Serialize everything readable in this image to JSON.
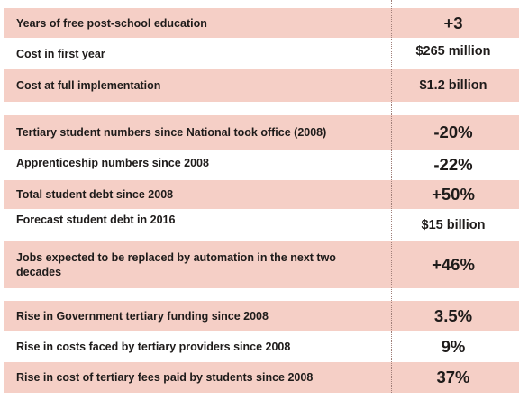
{
  "groups": [
    {
      "rows": [
        {
          "label": "Years of free post-school education",
          "value": "+3"
        },
        {
          "label": "Cost in first year",
          "value": "$265 million"
        },
        {
          "label": "Cost at full implementation",
          "value": "$1.2 billion"
        }
      ]
    },
    {
      "rows": [
        {
          "label": "Tertiary student numbers since National took office (2008)",
          "value": "-20%"
        },
        {
          "label": "Apprenticeship numbers since 2008",
          "value": "-22%"
        },
        {
          "label": "Total student debt since 2008",
          "value": "+50%"
        },
        {
          "label": "Forecast student debt in 2016",
          "value": "$15 billion"
        },
        {
          "label": "Jobs expected to be replaced by automation in the next two decades",
          "value": "+46%"
        }
      ]
    },
    {
      "rows": [
        {
          "label": "Rise in Government tertiary funding since 2008",
          "value": "3.5%"
        },
        {
          "label": "Rise in costs faced by tertiary providers since 2008",
          "value": "9%"
        },
        {
          "label": "Rise in cost of tertiary fees paid by students since 2008",
          "value": "37%"
        }
      ]
    }
  ],
  "colors": {
    "shade": "#f5cfc6",
    "text": "#1e1b1a"
  }
}
